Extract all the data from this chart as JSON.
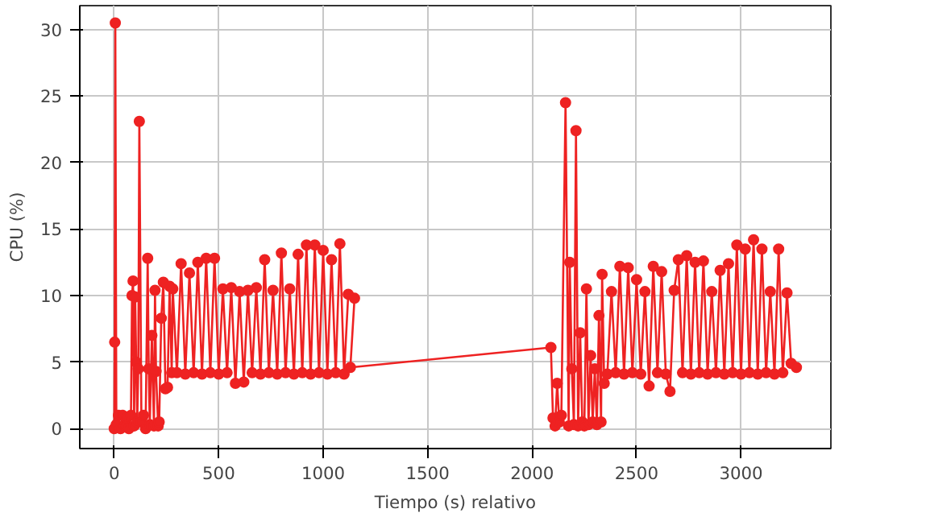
{
  "chart_data": {
    "type": "line",
    "xlabel": "Tiempo (s) relativo",
    "ylabel": "CPU (%)",
    "xlim": [
      -165,
      3430
    ],
    "ylim": [
      -1.5,
      31.8
    ],
    "xticks": [
      0,
      500,
      1000,
      1500,
      2000,
      2500,
      3000
    ],
    "yticks": [
      0,
      5,
      10,
      15,
      20,
      25,
      30
    ],
    "grid": true,
    "marker": "circle",
    "line_style": "solid",
    "series": [
      {
        "color": "#ee2222",
        "x": [
          0,
          2,
          5,
          10,
          20,
          30,
          40,
          50,
          60,
          70,
          80,
          85,
          90,
          95,
          100,
          105,
          110,
          115,
          120,
          130,
          140,
          150,
          160,
          165,
          170,
          180,
          190,
          195,
          200,
          210,
          215,
          225,
          235,
          245,
          255,
          265,
          275,
          280,
          300,
          320,
          340,
          360,
          380,
          400,
          420,
          440,
          460,
          480,
          500,
          520,
          540,
          560,
          580,
          600,
          620,
          640,
          660,
          680,
          700,
          720,
          740,
          760,
          780,
          800,
          820,
          840,
          860,
          880,
          900,
          920,
          940,
          960,
          980,
          1000,
          1020,
          1040,
          1060,
          1080,
          1100,
          1120,
          1150,
          1130,
          2090,
          2100,
          2110,
          2120,
          2130,
          2140,
          2160,
          2175,
          2180,
          2190,
          2200,
          2210,
          2220,
          2230,
          2240,
          2250,
          2260,
          2270,
          2280,
          2290,
          2300,
          2310,
          2320,
          2330,
          2335,
          2345,
          2360,
          2380,
          2400,
          2420,
          2440,
          2460,
          2480,
          2500,
          2520,
          2540,
          2560,
          2580,
          2600,
          2620,
          2640,
          2660,
          2680,
          2700,
          2720,
          2740,
          2760,
          2780,
          2800,
          2820,
          2840,
          2860,
          2880,
          2900,
          2920,
          2940,
          2960,
          2980,
          3000,
          3020,
          3040,
          3060,
          3080,
          3100,
          3120,
          3140,
          3160,
          3180,
          3200,
          3220,
          3240,
          3265
        ],
        "values": [
          0,
          6.5,
          30.5,
          0.3,
          1,
          0,
          1,
          0.2,
          0.8,
          0,
          1,
          10,
          11.1,
          0.2,
          9.9,
          5,
          0.5,
          4.5,
          23.1,
          0.5,
          1,
          0,
          12.8,
          4.5,
          0.3,
          7,
          0.2,
          10.4,
          4.3,
          0.2,
          0.5,
          8.3,
          11,
          3,
          3.1,
          10.7,
          4.2,
          10.5,
          4.2,
          12.4,
          4.1,
          11.7,
          4.2,
          12.5,
          4.1,
          12.8,
          4.2,
          12.8,
          4.1,
          10.5,
          4.2,
          10.6,
          3.4,
          10.3,
          3.5,
          10.4,
          4.2,
          10.6,
          4.1,
          12.7,
          4.2,
          10.4,
          4.1,
          13.2,
          4.2,
          10.5,
          4.1,
          13.1,
          4.2,
          13.8,
          4.1,
          13.8,
          4.2,
          13.4,
          4.1,
          12.7,
          4.2,
          13.9,
          4.1,
          10.1,
          9.8,
          4.6,
          6.1,
          0.8,
          0.2,
          3.4,
          0.5,
          1,
          24.5,
          0.2,
          12.5,
          4.5,
          0.3,
          22.4,
          0.2,
          7.2,
          0.5,
          0.2,
          10.5,
          0.3,
          5.5,
          0.5,
          4.5,
          0.3,
          8.5,
          0.5,
          11.6,
          3.4,
          4.1,
          10.3,
          4.2,
          12.2,
          4.1,
          12.1,
          4.2,
          11.2,
          4.1,
          10.3,
          3.2,
          12.2,
          4.2,
          11.8,
          4.1,
          2.8,
          10.4,
          12.7,
          4.2,
          13,
          4.1,
          12.5,
          4.2,
          12.6,
          4.1,
          10.3,
          4.2,
          11.9,
          4.1,
          12.4,
          4.2,
          13.8,
          4.1,
          13.5,
          4.2,
          14.2,
          4.1,
          13.5,
          4.2,
          10.3,
          4.1,
          13.5,
          4.2,
          10.2,
          4.9,
          4.6
        ]
      }
    ]
  }
}
